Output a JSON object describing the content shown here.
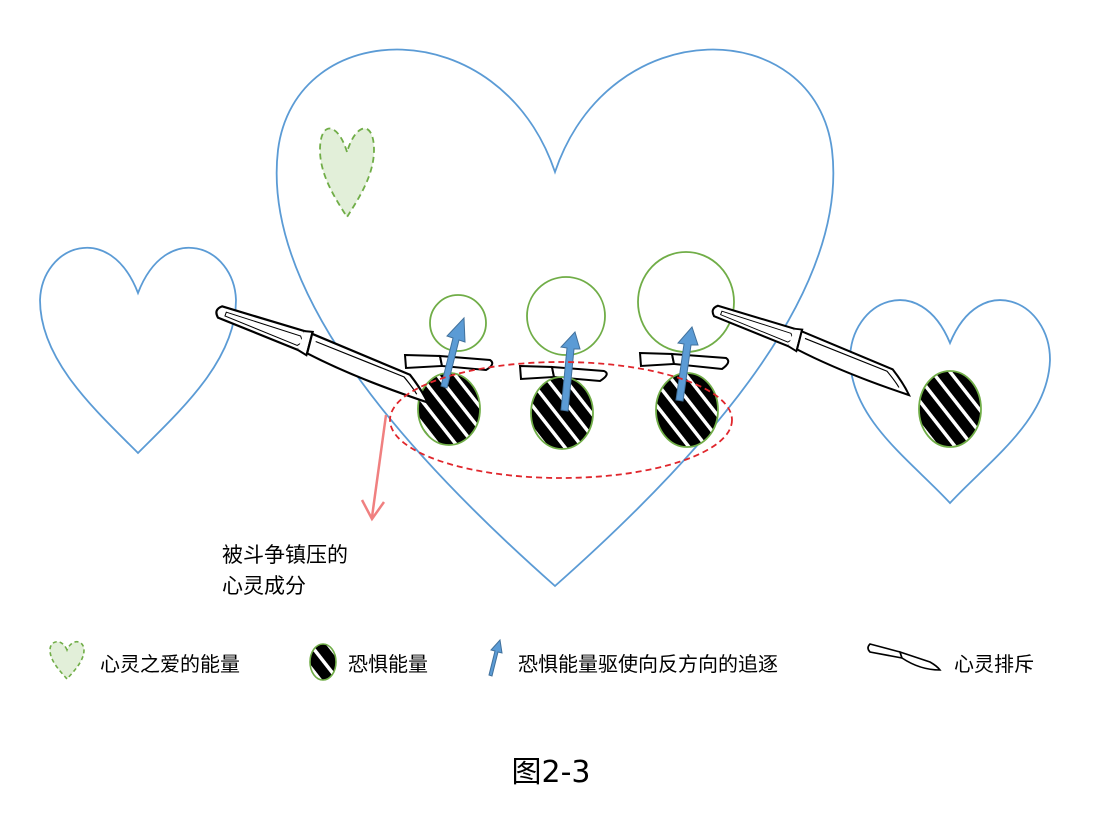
{
  "callout": {
    "line1": "被斗争镇压的",
    "line2": "心灵成分"
  },
  "legend": {
    "love": "心灵之爱的能量",
    "fear": "恐惧能量",
    "chase": "恐惧能量驱使向反方向的追逐",
    "reject": "心灵排斥"
  },
  "caption": "图2-3",
  "colors": {
    "heart_outline": "#5b9bd5",
    "love_fill": "#e2efd9",
    "love_stroke": "#70ad47",
    "fear_fill": "#000000",
    "fear_stroke": "#70ad47",
    "arrow": "#5b9bd5",
    "suppressed_ellipse": "#e0262c",
    "pointer_arrow": "#f08080"
  }
}
